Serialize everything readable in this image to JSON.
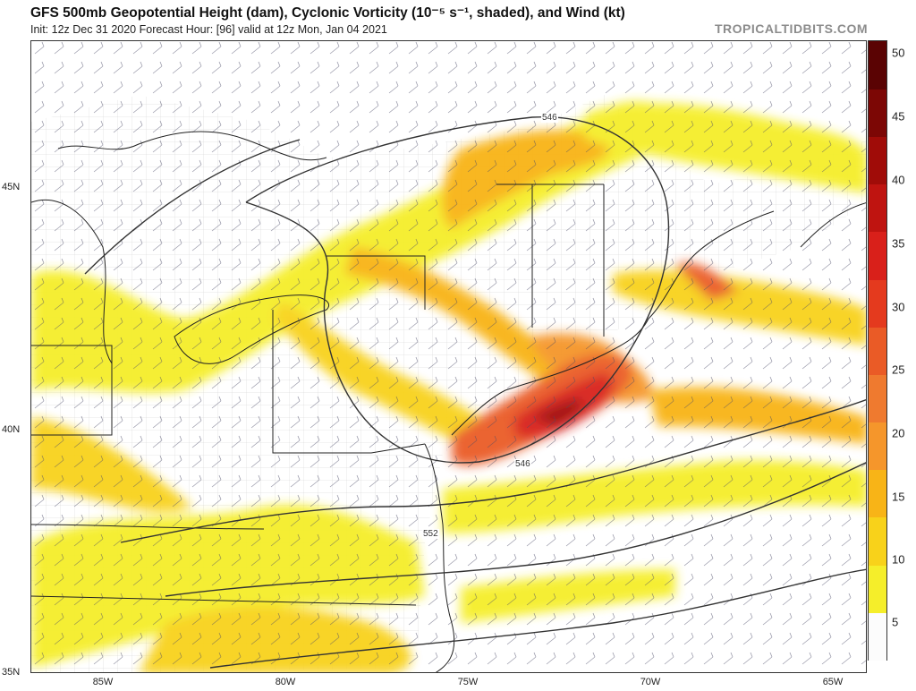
{
  "header": {
    "title": "GFS 500mb Geopotential Height (dam), Cyclonic Vorticity (10⁻⁵ s⁻¹, shaded), and Wind (kt)",
    "subtitle": "Init: 12z Dec 31 2020   Forecast Hour: [96]   valid at 12z Mon, Jan 04 2021",
    "brand": "TROPICALTIDBITS.COM"
  },
  "map": {
    "lat_labels": [
      "45N",
      "40N",
      "35N"
    ],
    "lon_labels": [
      "85W",
      "80W",
      "75W",
      "70W",
      "65W"
    ],
    "contour_labels": [
      "546",
      "546",
      "552"
    ]
  },
  "colorbar": {
    "ticks": [
      "50",
      "45",
      "40",
      "35",
      "30",
      "25",
      "20",
      "15",
      "10",
      "5"
    ],
    "colors": [
      "#fcfcfc",
      "#f5ee2a",
      "#f8d21a",
      "#f8b417",
      "#f5962b",
      "#ef7a2f",
      "#ea5b26",
      "#e43a1e",
      "#d9201a",
      "#bf1410",
      "#a00c08",
      "#7c0705",
      "#5a0303"
    ]
  }
}
